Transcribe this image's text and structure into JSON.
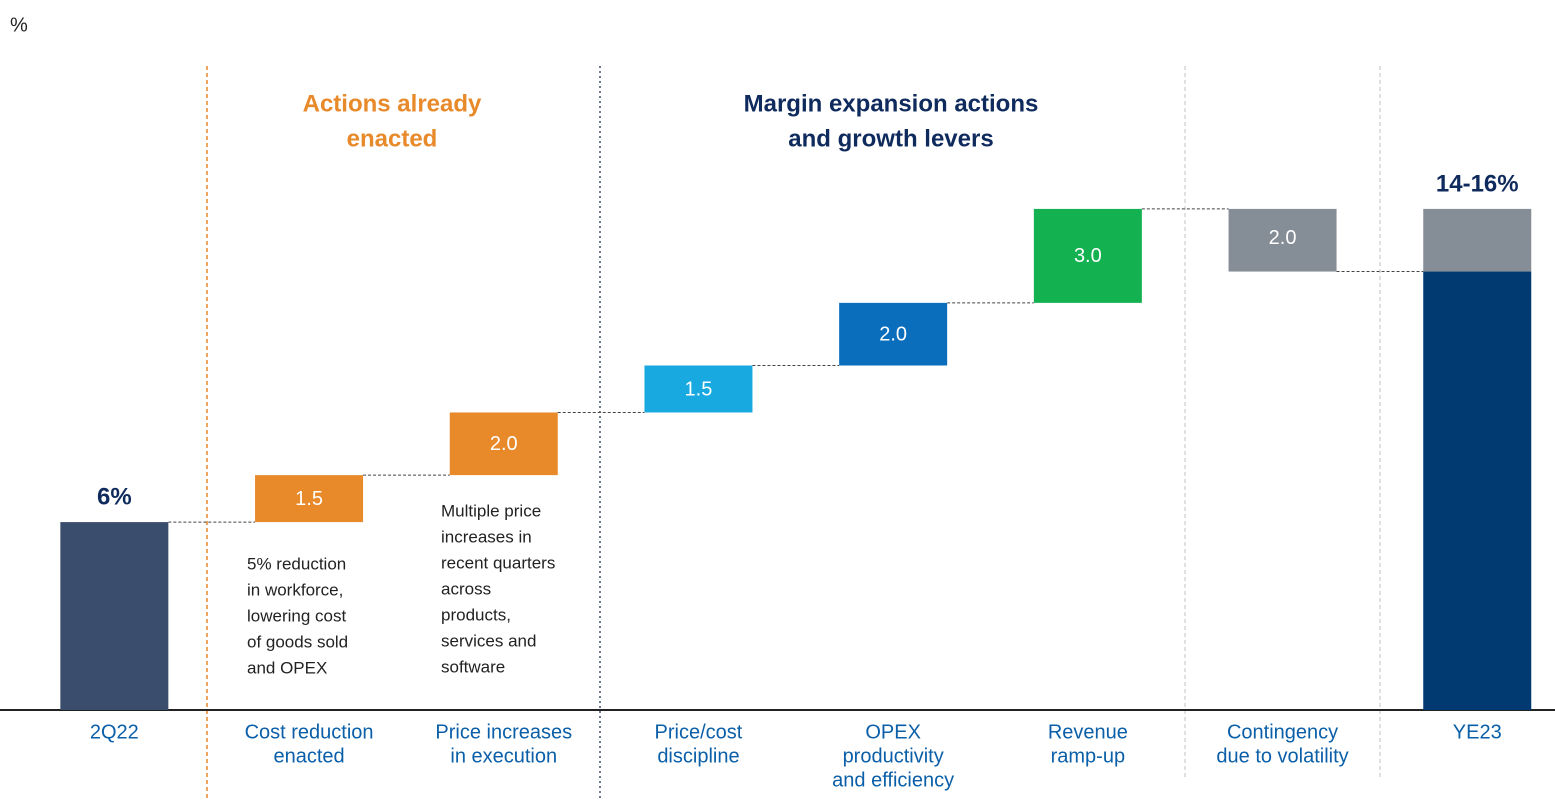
{
  "chart_data": {
    "type": "waterfall",
    "unit_label": "%",
    "categories": [
      [
        "2Q22"
      ],
      [
        "Cost reduction",
        "enacted"
      ],
      [
        "Price increases",
        "in execution"
      ],
      [
        "Price/cost",
        "discipline"
      ],
      [
        "OPEX",
        "productivity",
        "and efficiency"
      ],
      [
        "Revenue",
        "ramp-up"
      ],
      [
        "Contingency",
        "due to volatility"
      ],
      [
        "YE23"
      ]
    ],
    "measure": [
      "total",
      "increase",
      "increase",
      "increase",
      "increase",
      "increase",
      "decrease",
      "total"
    ],
    "values": [
      6,
      1.5,
      2.0,
      1.5,
      2.0,
      3.0,
      2.0,
      14
    ],
    "value_labels": [
      "6%",
      "1.5",
      "2.0",
      "1.5",
      "2.0",
      "3.0",
      "2.0",
      "14-16%"
    ],
    "ranges": [
      null,
      null,
      null,
      null,
      null,
      null,
      null,
      2
    ],
    "colors": [
      "#3a4d6d",
      "#e8892a",
      "#e8892a",
      "#19a9e1",
      "#0a6ebd",
      "#13b14f",
      "#858d96",
      "#003a70"
    ],
    "range_color": "#858d96",
    "ylim": [
      0,
      22
    ],
    "sections": [
      {
        "lines": [
          "Actions already",
          "enacted"
        ],
        "color": "#e8892a"
      },
      {
        "lines": [
          "Margin expansion actions",
          "and growth levers"
        ],
        "color": "#0f2a5c"
      }
    ],
    "notes": [
      [
        "5% reduction",
        "in workforce,",
        "lowering cost",
        "of goods sold",
        "and OPEX"
      ],
      [
        "Multiple price",
        "increases in",
        "recent quarters",
        "across",
        "products,",
        "services and",
        "software"
      ]
    ]
  }
}
